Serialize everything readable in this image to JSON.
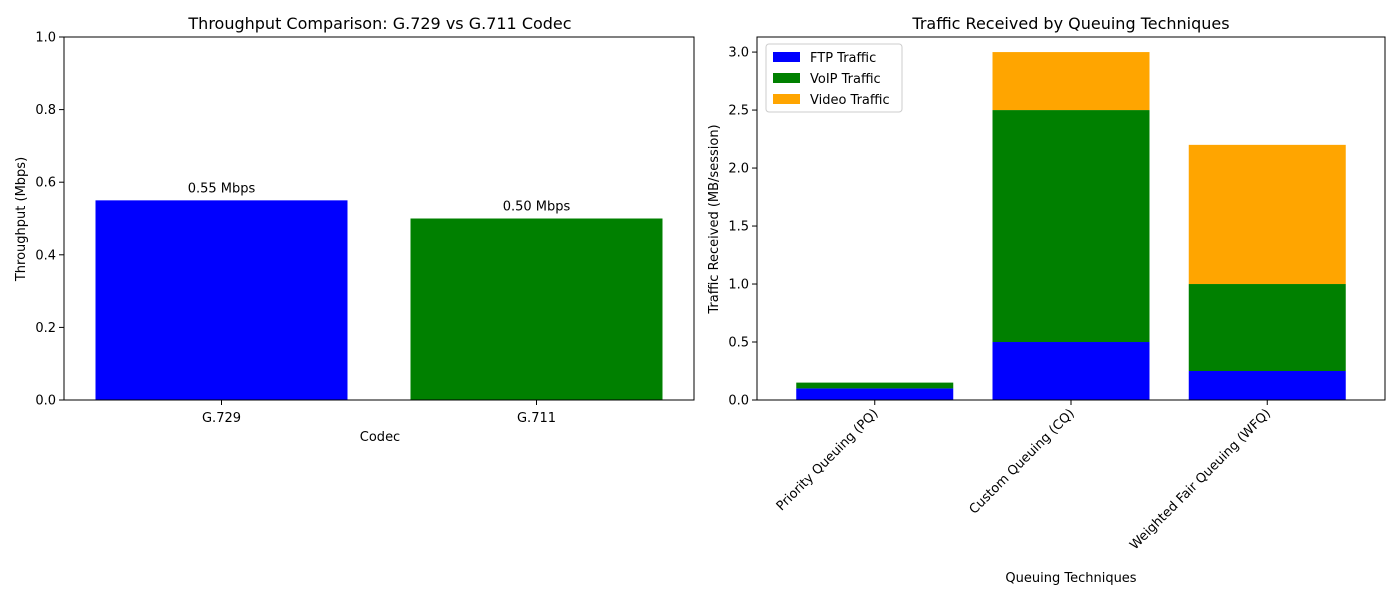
{
  "chart_data": [
    {
      "type": "bar",
      "title": "Throughput Comparison: G.729 vs G.711 Codec",
      "xlabel": "Codec",
      "ylabel": "Throughput (Mbps)",
      "categories": [
        "G.729",
        "G.711"
      ],
      "values": [
        0.55,
        0.5
      ],
      "colors": [
        "#0000ff",
        "#008000"
      ],
      "data_labels": [
        "0.55 Mbps",
        "0.50 Mbps"
      ],
      "ylim": [
        0,
        1.0
      ],
      "yticks": [
        0.0,
        0.2,
        0.4,
        0.6,
        0.8,
        1.0
      ],
      "ytick_labels": [
        "0.0",
        "0.2",
        "0.4",
        "0.6",
        "0.8",
        "1.0"
      ],
      "grid": false
    },
    {
      "type": "bar",
      "stacked": true,
      "title": "Traffic Received by Queuing Techniques",
      "xlabel": "Queuing Techniques",
      "ylabel": "Traffic Received (MB/session)",
      "categories": [
        "Priority Queuing (PQ)",
        "Custom Queuing (CQ)",
        "Weighted Fair Queuing (WFQ)"
      ],
      "series": [
        {
          "name": "FTP Traffic",
          "values": [
            0.1,
            0.5,
            0.25
          ],
          "color": "#0000ff"
        },
        {
          "name": "VoIP Traffic",
          "values": [
            0.05,
            2.0,
            0.75
          ],
          "color": "#008000"
        },
        {
          "name": "Video Traffic",
          "values": [
            0.0,
            0.5,
            1.2
          ],
          "color": "#ffa500"
        }
      ],
      "ylim": [
        0,
        3.13
      ],
      "yticks": [
        0.0,
        0.5,
        1.0,
        1.5,
        2.0,
        2.5,
        3.0
      ],
      "ytick_labels": [
        "0.0",
        "0.5",
        "1.0",
        "1.5",
        "2.0",
        "2.5",
        "3.0"
      ],
      "x_tick_rotation": 45,
      "legend": "top-left",
      "grid": false
    }
  ]
}
